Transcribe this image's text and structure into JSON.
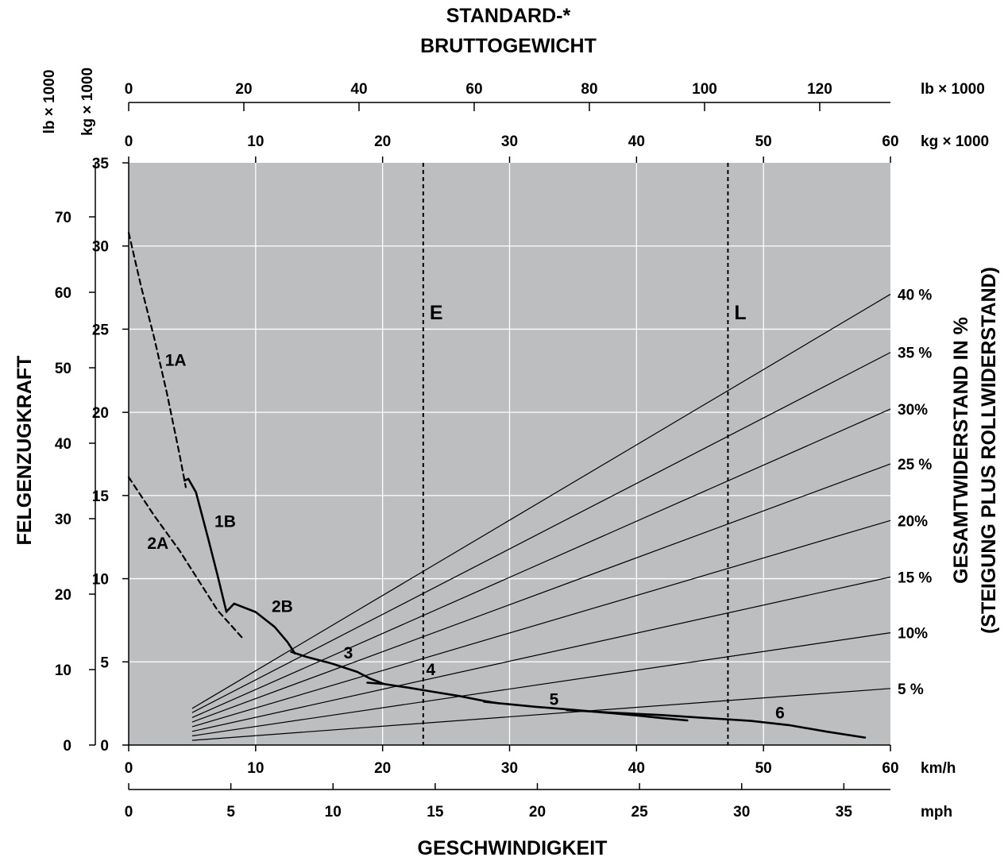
{
  "chart_data": {
    "type": "line",
    "title": [
      "STANDARD-*",
      "BRUTTOGEWICHT"
    ],
    "xlabel": "GESCHWINDIGKEIT",
    "ylabel": "FELGENZUGKRAFT",
    "y2label": [
      "GESAMTWIDERSTAND IN %",
      "(STEIGUNG PLUS ROLLWIDERSTAND)"
    ],
    "axes": {
      "x_kmh": {
        "unit": "km/h",
        "range": [
          0,
          60
        ],
        "ticks": [
          0,
          10,
          20,
          30,
          40,
          50,
          60
        ]
      },
      "x_mph": {
        "unit": "mph",
        "range": [
          0,
          37.28
        ],
        "ticks": [
          0,
          5,
          10,
          15,
          20,
          25,
          30,
          35
        ]
      },
      "y_kg": {
        "unit": "kg × 1000",
        "range": [
          0,
          35
        ],
        "ticks": [
          0,
          5,
          10,
          15,
          20,
          25,
          30,
          35
        ]
      },
      "y_lb": {
        "unit": "lb × 1000",
        "range": [
          0,
          77.16
        ],
        "ticks": [
          0,
          10,
          20,
          30,
          40,
          50,
          60,
          70
        ]
      },
      "weight_kg": {
        "unit": "kg × 1000",
        "range": [
          0,
          60
        ],
        "ticks": [
          0,
          10,
          20,
          30,
          40,
          50,
          60
        ]
      },
      "weight_lb": {
        "unit": "lb × 1000",
        "range": [
          0,
          132.28
        ],
        "ticks": [
          0,
          20,
          40,
          60,
          80,
          100,
          120
        ]
      }
    },
    "grid": true,
    "plot_background": "#bcbec0",
    "series": [
      {
        "name": "1A",
        "style": "dashed",
        "points": [
          [
            0,
            30.8
          ],
          [
            1,
            27.5
          ],
          [
            2,
            24.5
          ],
          [
            3,
            21.2
          ],
          [
            4,
            17.5
          ],
          [
            4.5,
            15.5
          ]
        ],
        "label_at": [
          3.7,
          22.8
        ]
      },
      {
        "name": "1B",
        "style": "solid",
        "points": [
          [
            4.4,
            15.9
          ],
          [
            4.7,
            16.0
          ],
          [
            5.3,
            15.2
          ],
          [
            6.3,
            12.3
          ],
          [
            7.0,
            10.2
          ],
          [
            7.7,
            8.0
          ]
        ],
        "label_at": [
          7.6,
          13.1
        ]
      },
      {
        "name": "2A",
        "style": "dashed",
        "points": [
          [
            0,
            16.1
          ],
          [
            2,
            13.8
          ],
          [
            4,
            11.7
          ],
          [
            6,
            9.3
          ],
          [
            7,
            8.1
          ],
          [
            9,
            6.4
          ]
        ],
        "label_at": [
          2.3,
          11.8
        ]
      },
      {
        "name": "2B",
        "style": "solid",
        "points": [
          [
            7.8,
            8.1
          ],
          [
            8.3,
            8.5
          ],
          [
            10,
            8.0
          ],
          [
            11.5,
            7.1
          ],
          [
            12.5,
            6.2
          ],
          [
            13.1,
            5.5
          ]
        ],
        "label_at": [
          12.1,
          8.0
        ]
      },
      {
        "name": "3",
        "style": "solid",
        "points": [
          [
            12.8,
            5.6
          ],
          [
            14,
            5.3
          ],
          [
            16,
            4.9
          ],
          [
            18,
            4.4
          ],
          [
            19,
            4.0
          ],
          [
            20,
            3.7
          ]
        ],
        "label_at": [
          17.3,
          5.2
        ]
      },
      {
        "name": "4",
        "style": "solid",
        "points": [
          [
            18.8,
            3.75
          ],
          [
            20,
            3.68
          ],
          [
            22,
            3.45
          ],
          [
            24,
            3.2
          ],
          [
            26,
            2.95
          ],
          [
            28,
            2.65
          ],
          [
            29.2,
            2.5
          ]
        ],
        "label_at": [
          23.8,
          4.2
        ]
      },
      {
        "name": "5",
        "style": "solid",
        "points": [
          [
            28,
            2.6
          ],
          [
            30,
            2.45
          ],
          [
            32,
            2.3
          ],
          [
            34,
            2.18
          ],
          [
            36,
            2.05
          ],
          [
            38,
            1.92
          ],
          [
            40,
            1.78
          ],
          [
            42,
            1.62
          ],
          [
            44,
            1.48
          ]
        ],
        "label_at": [
          33.5,
          2.4
        ]
      },
      {
        "name": "6",
        "style": "solid",
        "points": [
          [
            34.5,
            2.1
          ],
          [
            38,
            1.95
          ],
          [
            42,
            1.8
          ],
          [
            46,
            1.6
          ],
          [
            49,
            1.45
          ],
          [
            52,
            1.2
          ],
          [
            55,
            0.8
          ],
          [
            58,
            0.45
          ]
        ],
        "label_at": [
          51.3,
          1.6
        ]
      }
    ],
    "resistance_lines": [
      {
        "label": "40 %",
        "start": [
          5,
          2.2
        ],
        "end": [
          60,
          27.1
        ]
      },
      {
        "label": "35 %",
        "start": [
          5,
          1.95
        ],
        "end": [
          60,
          23.6
        ]
      },
      {
        "label": "30%",
        "start": [
          5,
          1.65
        ],
        "end": [
          60,
          20.2
        ]
      },
      {
        "label": "25 %",
        "start": [
          5,
          1.38
        ],
        "end": [
          60,
          16.9
        ]
      },
      {
        "label": "20%",
        "start": [
          5,
          1.1
        ],
        "end": [
          60,
          13.5
        ]
      },
      {
        "label": "15 %",
        "start": [
          5,
          0.82
        ],
        "end": [
          60,
          10.1
        ]
      },
      {
        "label": "10%",
        "start": [
          5,
          0.55
        ],
        "end": [
          60,
          6.75
        ]
      },
      {
        "label": "5 %",
        "start": [
          5,
          0.28
        ],
        "end": [
          60,
          3.4
        ]
      }
    ],
    "reference_lines": [
      {
        "label": "E",
        "x": 23.2,
        "style": "dashed"
      },
      {
        "label": "L",
        "x": 47.2,
        "style": "dashed"
      }
    ]
  }
}
